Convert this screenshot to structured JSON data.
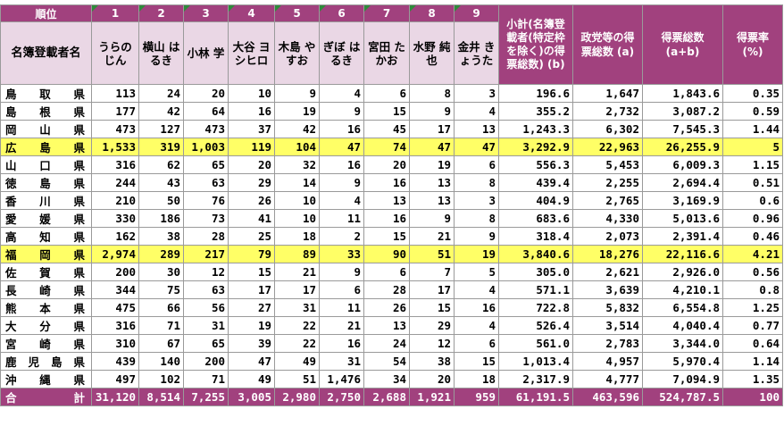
{
  "header": {
    "rank_label": "順位",
    "name_label": "名簿登載者名",
    "ranks": [
      "1",
      "2",
      "3",
      "4",
      "5",
      "6",
      "7",
      "8",
      "9"
    ],
    "candidates": [
      "うらの じん",
      "横山 はるき",
      "小林 学",
      "大谷 ヨシヒロ",
      "木島 やすお",
      "ぎぼ はるき",
      "宮田 たかお",
      "水野 純也",
      "金井 きょうた"
    ],
    "subtotal_label": "小計(名簿登載者(特定枠を除く)の得票総数) (b)",
    "party_label": "政党等の得票総数 (a)",
    "total_label": "得票総数 (a+b)",
    "rate_label": "得票率 (%)"
  },
  "rows": [
    {
      "pref": "鳥取県",
      "votes": [
        "113",
        "24",
        "20",
        "10",
        "9",
        "4",
        "6",
        "8",
        "3"
      ],
      "subtotal": "196.6",
      "party": "1,647",
      "total": "1,843.6",
      "rate": "0.35",
      "highlight": false
    },
    {
      "pref": "島根県",
      "votes": [
        "177",
        "42",
        "64",
        "16",
        "19",
        "9",
        "15",
        "9",
        "4"
      ],
      "subtotal": "355.2",
      "party": "2,732",
      "total": "3,087.2",
      "rate": "0.59",
      "highlight": false
    },
    {
      "pref": "岡山県",
      "votes": [
        "473",
        "127",
        "473",
        "37",
        "42",
        "16",
        "45",
        "17",
        "13"
      ],
      "subtotal": "1,243.3",
      "party": "6,302",
      "total": "7,545.3",
      "rate": "1.44",
      "highlight": false
    },
    {
      "pref": "広島県",
      "votes": [
        "1,533",
        "319",
        "1,003",
        "119",
        "104",
        "47",
        "74",
        "47",
        "47"
      ],
      "subtotal": "3,292.9",
      "party": "22,963",
      "total": "26,255.9",
      "rate": "5",
      "highlight": true
    },
    {
      "pref": "山口県",
      "votes": [
        "316",
        "62",
        "65",
        "20",
        "32",
        "16",
        "20",
        "19",
        "6"
      ],
      "subtotal": "556.3",
      "party": "5,453",
      "total": "6,009.3",
      "rate": "1.15",
      "highlight": false
    },
    {
      "pref": "徳島県",
      "votes": [
        "244",
        "43",
        "63",
        "29",
        "14",
        "9",
        "16",
        "13",
        "8"
      ],
      "subtotal": "439.4",
      "party": "2,255",
      "total": "2,694.4",
      "rate": "0.51",
      "highlight": false
    },
    {
      "pref": "香川県",
      "votes": [
        "210",
        "50",
        "76",
        "26",
        "10",
        "4",
        "13",
        "13",
        "3"
      ],
      "subtotal": "404.9",
      "party": "2,765",
      "total": "3,169.9",
      "rate": "0.6",
      "highlight": false
    },
    {
      "pref": "愛媛県",
      "votes": [
        "330",
        "186",
        "73",
        "41",
        "10",
        "11",
        "16",
        "9",
        "8"
      ],
      "subtotal": "683.6",
      "party": "4,330",
      "total": "5,013.6",
      "rate": "0.96",
      "highlight": false
    },
    {
      "pref": "高知県",
      "votes": [
        "162",
        "38",
        "28",
        "25",
        "18",
        "2",
        "15",
        "21",
        "9"
      ],
      "subtotal": "318.4",
      "party": "2,073",
      "total": "2,391.4",
      "rate": "0.46",
      "highlight": false
    },
    {
      "pref": "福岡県",
      "votes": [
        "2,974",
        "289",
        "217",
        "79",
        "89",
        "33",
        "90",
        "51",
        "19"
      ],
      "subtotal": "3,840.6",
      "party": "18,276",
      "total": "22,116.6",
      "rate": "4.21",
      "highlight": true
    },
    {
      "pref": "佐賀県",
      "votes": [
        "200",
        "30",
        "12",
        "15",
        "21",
        "9",
        "6",
        "7",
        "5"
      ],
      "subtotal": "305.0",
      "party": "2,621",
      "total": "2,926.0",
      "rate": "0.56",
      "highlight": false
    },
    {
      "pref": "長崎県",
      "votes": [
        "344",
        "75",
        "63",
        "17",
        "17",
        "6",
        "28",
        "17",
        "4"
      ],
      "subtotal": "571.1",
      "party": "3,639",
      "total": "4,210.1",
      "rate": "0.8",
      "highlight": false
    },
    {
      "pref": "熊本県",
      "votes": [
        "475",
        "66",
        "56",
        "27",
        "31",
        "11",
        "26",
        "15",
        "16"
      ],
      "subtotal": "722.8",
      "party": "5,832",
      "total": "6,554.8",
      "rate": "1.25",
      "highlight": false
    },
    {
      "pref": "大分県",
      "votes": [
        "316",
        "71",
        "31",
        "19",
        "22",
        "21",
        "13",
        "29",
        "4"
      ],
      "subtotal": "526.4",
      "party": "3,514",
      "total": "4,040.4",
      "rate": "0.77",
      "highlight": false
    },
    {
      "pref": "宮崎県",
      "votes": [
        "310",
        "67",
        "65",
        "39",
        "22",
        "16",
        "24",
        "12",
        "6"
      ],
      "subtotal": "561.0",
      "party": "2,783",
      "total": "3,344.0",
      "rate": "0.64",
      "highlight": false
    },
    {
      "pref": "鹿児島県",
      "votes": [
        "439",
        "140",
        "200",
        "47",
        "49",
        "31",
        "54",
        "38",
        "15"
      ],
      "subtotal": "1,013.4",
      "party": "4,957",
      "total": "5,970.4",
      "rate": "1.14",
      "highlight": false
    },
    {
      "pref": "沖縄県",
      "votes": [
        "497",
        "102",
        "71",
        "49",
        "51",
        "1,476",
        "34",
        "20",
        "18"
      ],
      "subtotal": "2,317.9",
      "party": "4,777",
      "total": "7,094.9",
      "rate": "1.35",
      "highlight": false
    }
  ],
  "total_row": {
    "pref": "合計",
    "votes": [
      "31,120",
      "8,514",
      "7,255",
      "3,005",
      "2,980",
      "2,750",
      "2,688",
      "1,921",
      "959"
    ],
    "subtotal": "61,191.5",
    "party": "463,596",
    "total": "524,787.5",
    "rate": "100"
  },
  "colors": {
    "header": "#a1417e",
    "header_light": "#ead7e5",
    "highlight": "#ffff66",
    "mark": "#2e8b3a"
  }
}
